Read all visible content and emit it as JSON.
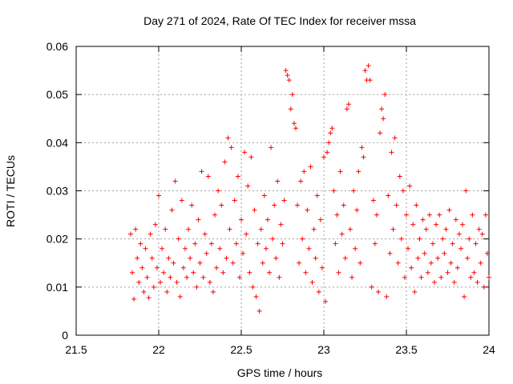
{
  "chart_data": {
    "type": "scatter",
    "title": "Day 271 of 2024, Rate Of TEC Index for receiver mssa",
    "xlabel": "GPS time / hours",
    "ylabel": "ROTI / TECUs",
    "xlim": [
      21.5,
      24
    ],
    "ylim": [
      0,
      0.06
    ],
    "x_ticks": [
      21.5,
      22,
      22.5,
      23,
      23.5,
      24
    ],
    "y_ticks": [
      0,
      0.01,
      0.02,
      0.03,
      0.04,
      0.05,
      0.06
    ],
    "x_tick_labels": [
      "21.5",
      "22",
      "22.5",
      "23",
      "23.5",
      "24"
    ],
    "y_tick_labels": [
      "0",
      "0.01",
      "0.02",
      "0.03",
      "0.04",
      "0.05",
      "0.06"
    ],
    "grid": true,
    "marker": "+",
    "color": "#ff0000",
    "series": [
      {
        "name": "ROTI",
        "points": [
          [
            21.83,
            0.021
          ],
          [
            21.84,
            0.013
          ],
          [
            21.85,
            0.0075
          ],
          [
            21.86,
            0.022
          ],
          [
            21.87,
            0.016
          ],
          [
            21.88,
            0.011
          ],
          [
            21.89,
            0.019
          ],
          [
            21.9,
            0.014
          ],
          [
            21.91,
            0.009
          ],
          [
            21.92,
            0.018
          ],
          [
            21.93,
            0.012
          ],
          [
            21.94,
            0.0078
          ],
          [
            21.95,
            0.021
          ],
          [
            21.96,
            0.016
          ],
          [
            21.97,
            0.01
          ],
          [
            21.98,
            0.023
          ],
          [
            21.99,
            0.014
          ],
          [
            22.0,
            0.029
          ],
          [
            22.01,
            0.011
          ],
          [
            22.02,
            0.018
          ],
          [
            22.03,
            0.013
          ],
          [
            22.04,
            0.022
          ],
          [
            22.05,
            0.009
          ],
          [
            22.06,
            0.016
          ],
          [
            22.07,
            0.012
          ],
          [
            22.08,
            0.026
          ],
          [
            22.09,
            0.015
          ],
          [
            22.1,
            0.032
          ],
          [
            22.11,
            0.011
          ],
          [
            22.12,
            0.02
          ],
          [
            22.13,
            0.008
          ],
          [
            22.14,
            0.028
          ],
          [
            22.15,
            0.014
          ],
          [
            22.16,
            0.018
          ],
          [
            22.17,
            0.012
          ],
          [
            22.18,
            0.022
          ],
          [
            22.19,
            0.016
          ],
          [
            22.2,
            0.027
          ],
          [
            22.21,
            0.013
          ],
          [
            22.22,
            0.019
          ],
          [
            22.23,
            0.01
          ],
          [
            22.24,
            0.024
          ],
          [
            22.25,
            0.015
          ],
          [
            22.26,
            0.034
          ],
          [
            22.27,
            0.012
          ],
          [
            22.28,
            0.021
          ],
          [
            22.29,
            0.017
          ],
          [
            22.3,
            0.033
          ],
          [
            22.31,
            0.011
          ],
          [
            22.32,
            0.019
          ],
          [
            22.33,
            0.009
          ],
          [
            22.34,
            0.025
          ],
          [
            22.35,
            0.014
          ],
          [
            22.36,
            0.03
          ],
          [
            22.37,
            0.018
          ],
          [
            22.38,
            0.027
          ],
          [
            22.39,
            0.013
          ],
          [
            22.4,
            0.036
          ],
          [
            22.41,
            0.016
          ],
          [
            22.42,
            0.041
          ],
          [
            22.43,
            0.022
          ],
          [
            22.44,
            0.039
          ],
          [
            22.45,
            0.015
          ],
          [
            22.46,
            0.028
          ],
          [
            22.47,
            0.019
          ],
          [
            22.48,
            0.033
          ],
          [
            22.49,
            0.012
          ],
          [
            22.5,
            0.024
          ],
          [
            22.51,
            0.017
          ],
          [
            22.52,
            0.038
          ],
          [
            22.53,
            0.021
          ],
          [
            22.54,
            0.031
          ],
          [
            22.55,
            0.013
          ],
          [
            22.56,
            0.037
          ],
          [
            22.57,
            0.01
          ],
          [
            22.58,
            0.026
          ],
          [
            22.59,
            0.008
          ],
          [
            22.6,
            0.019
          ],
          [
            22.61,
            0.005
          ],
          [
            22.62,
            0.022
          ],
          [
            22.63,
            0.015
          ],
          [
            22.64,
            0.029
          ],
          [
            22.65,
            0.018
          ],
          [
            22.66,
            0.024
          ],
          [
            22.67,
            0.013
          ],
          [
            22.68,
            0.039
          ],
          [
            22.69,
            0.02
          ],
          [
            22.7,
            0.027
          ],
          [
            22.71,
            0.016
          ],
          [
            22.72,
            0.032
          ],
          [
            22.73,
            0.012
          ],
          [
            22.74,
            0.023
          ],
          [
            22.75,
            0.019
          ],
          [
            22.76,
            0.028
          ],
          [
            22.77,
            0.055
          ],
          [
            22.78,
            0.054
          ],
          [
            22.79,
            0.053
          ],
          [
            22.8,
            0.047
          ],
          [
            22.81,
            0.05
          ],
          [
            22.82,
            0.044
          ],
          [
            22.83,
            0.043
          ],
          [
            22.84,
            0.027
          ],
          [
            22.85,
            0.015
          ],
          [
            22.86,
            0.032
          ],
          [
            22.87,
            0.02
          ],
          [
            22.88,
            0.034
          ],
          [
            22.89,
            0.013
          ],
          [
            22.9,
            0.026
          ],
          [
            22.91,
            0.018
          ],
          [
            22.92,
            0.035
          ],
          [
            22.93,
            0.011
          ],
          [
            22.94,
            0.022
          ],
          [
            22.95,
            0.016
          ],
          [
            22.96,
            0.029
          ],
          [
            22.97,
            0.009
          ],
          [
            22.98,
            0.024
          ],
          [
            22.99,
            0.014
          ],
          [
            23.0,
            0.037
          ],
          [
            23.01,
            0.007
          ],
          [
            23.02,
            0.038
          ],
          [
            23.03,
            0.04
          ],
          [
            23.04,
            0.042
          ],
          [
            23.05,
            0.043
          ],
          [
            23.06,
            0.03
          ],
          [
            23.07,
            0.019
          ],
          [
            23.08,
            0.025
          ],
          [
            23.09,
            0.013
          ],
          [
            23.1,
            0.034
          ],
          [
            23.11,
            0.021
          ],
          [
            23.12,
            0.027
          ],
          [
            23.13,
            0.016
          ],
          [
            23.14,
            0.047
          ],
          [
            23.15,
            0.048
          ],
          [
            23.16,
            0.022
          ],
          [
            23.17,
            0.012
          ],
          [
            23.18,
            0.03
          ],
          [
            23.19,
            0.018
          ],
          [
            23.2,
            0.026
          ],
          [
            23.21,
            0.034
          ],
          [
            23.22,
            0.015
          ],
          [
            23.23,
            0.039
          ],
          [
            23.24,
            0.037
          ],
          [
            23.25,
            0.055
          ],
          [
            23.26,
            0.053
          ],
          [
            23.27,
            0.056
          ],
          [
            23.28,
            0.053
          ],
          [
            23.29,
            0.01
          ],
          [
            23.3,
            0.028
          ],
          [
            23.31,
            0.019
          ],
          [
            23.32,
            0.025
          ],
          [
            23.33,
            0.009
          ],
          [
            23.34,
            0.042
          ],
          [
            23.35,
            0.047
          ],
          [
            23.36,
            0.045
          ],
          [
            23.37,
            0.05
          ],
          [
            23.38,
            0.008
          ],
          [
            23.39,
            0.029
          ],
          [
            23.4,
            0.017
          ],
          [
            23.41,
            0.038
          ],
          [
            23.42,
            0.022
          ],
          [
            23.43,
            0.041
          ],
          [
            23.44,
            0.027
          ],
          [
            23.45,
            0.015
          ],
          [
            23.46,
            0.033
          ],
          [
            23.47,
            0.02
          ],
          [
            23.48,
            0.03
          ],
          [
            23.49,
            0.012
          ],
          [
            23.5,
            0.025
          ],
          [
            23.51,
            0.018
          ],
          [
            23.52,
            0.031
          ],
          [
            23.53,
            0.014
          ],
          [
            23.54,
            0.023
          ],
          [
            23.55,
            0.009
          ],
          [
            23.56,
            0.027
          ],
          [
            23.57,
            0.016
          ],
          [
            23.58,
            0.02
          ],
          [
            23.59,
            0.012
          ],
          [
            23.6,
            0.024
          ],
          [
            23.61,
            0.017
          ],
          [
            23.62,
            0.022
          ],
          [
            23.63,
            0.013
          ],
          [
            23.64,
            0.025
          ],
          [
            23.65,
            0.015
          ],
          [
            23.66,
            0.019
          ],
          [
            23.67,
            0.011
          ],
          [
            23.68,
            0.023
          ],
          [
            23.69,
            0.016
          ],
          [
            23.7,
            0.025
          ],
          [
            23.71,
            0.012
          ],
          [
            23.72,
            0.02
          ],
          [
            23.73,
            0.017
          ],
          [
            23.74,
            0.022
          ],
          [
            23.75,
            0.013
          ],
          [
            23.76,
            0.026
          ],
          [
            23.77,
            0.015
          ],
          [
            23.78,
            0.019
          ],
          [
            23.79,
            0.011
          ],
          [
            23.8,
            0.024
          ],
          [
            23.81,
            0.014
          ],
          [
            23.82,
            0.021
          ],
          [
            23.83,
            0.018
          ],
          [
            23.84,
            0.023
          ],
          [
            23.85,
            0.008
          ],
          [
            23.86,
            0.03
          ],
          [
            23.87,
            0.016
          ],
          [
            23.88,
            0.02
          ],
          [
            23.89,
            0.012
          ],
          [
            23.9,
            0.025
          ],
          [
            23.91,
            0.013
          ],
          [
            23.92,
            0.019
          ],
          [
            23.93,
            0.011
          ],
          [
            23.94,
            0.022
          ],
          [
            23.95,
            0.015
          ],
          [
            23.96,
            0.021
          ],
          [
            23.97,
            0.01
          ],
          [
            23.98,
            0.025
          ],
          [
            23.99,
            0.017
          ],
          [
            24.0,
            0.012
          ]
        ]
      }
    ]
  }
}
